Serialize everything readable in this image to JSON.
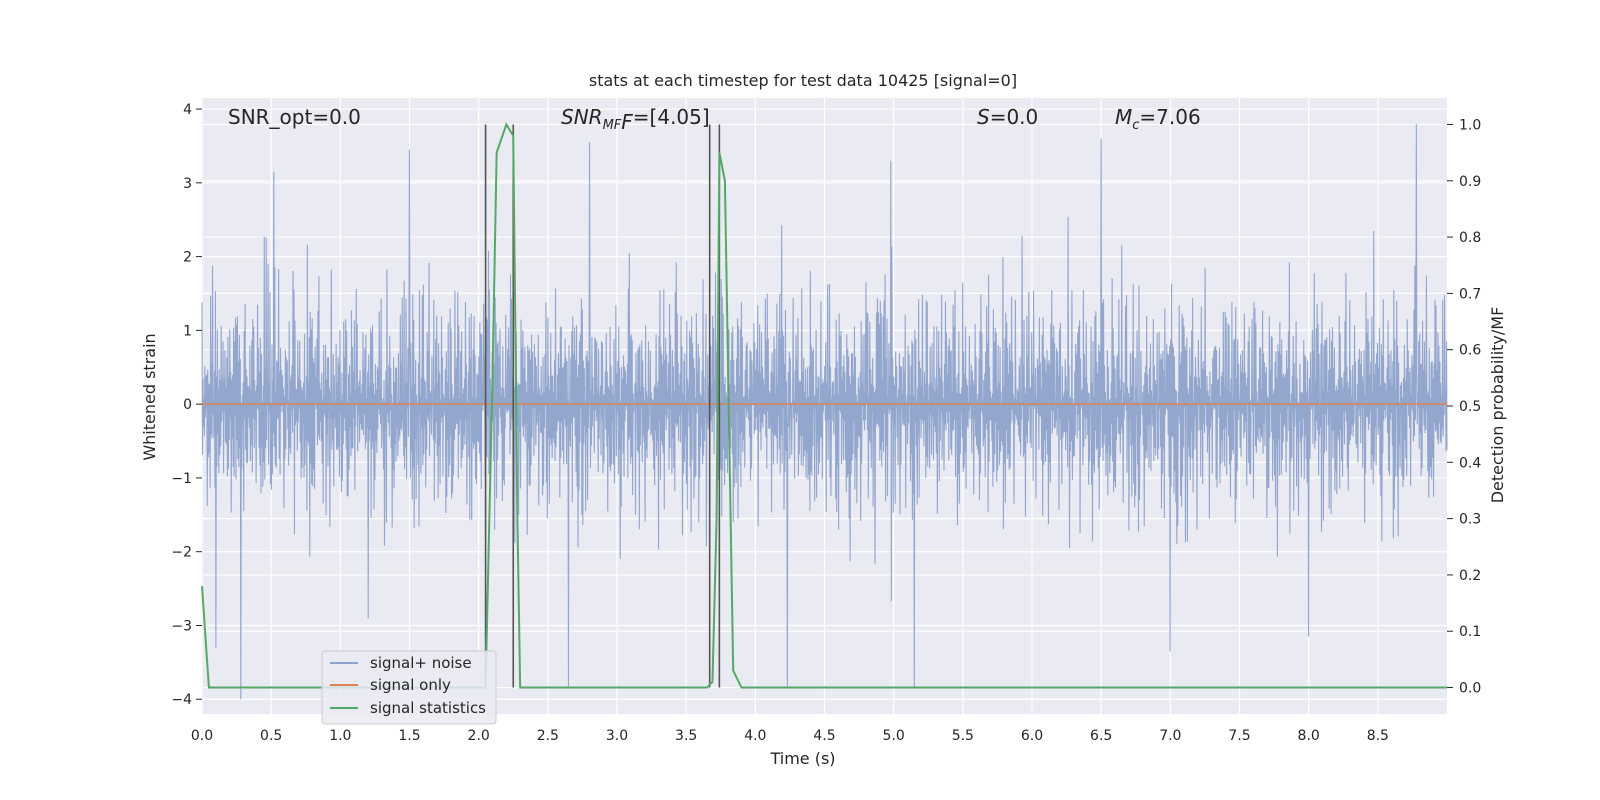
{
  "chart_data": {
    "type": "line",
    "title": "stats at each timestep for test data 10425 [signal=0]",
    "xlabel": "Time (s)",
    "ylabel_left": "Whitened strain",
    "ylabel_right": "Detection probability/MF",
    "xlim": [
      0,
      9.0
    ],
    "ylim_left": [
      -4.2,
      4.15
    ],
    "ylim_right": [
      -0.047,
      1.047
    ],
    "grid": true,
    "legend_position": "lower-left",
    "x_ticks": [
      "0.0",
      "0.5",
      "1.0",
      "1.5",
      "2.0",
      "2.5",
      "3.0",
      "3.5",
      "4.0",
      "4.5",
      "5.0",
      "5.5",
      "6.0",
      "6.5",
      "7.0",
      "7.5",
      "8.0",
      "8.5"
    ],
    "y_left_ticks": [
      "4",
      "3",
      "2",
      "1",
      "0",
      "−1",
      "−2",
      "−3",
      "−4"
    ],
    "y_right_ticks": [
      "1.0",
      "0.9",
      "0.8",
      "0.7",
      "0.6",
      "0.5",
      "0.4",
      "0.3",
      "0.2",
      "0.1",
      "0.0"
    ],
    "annotations": {
      "snr_opt": "SNR_opt=0.0",
      "snr_mf_main": "SNR",
      "snr_mf_sub": "MF",
      "snr_mf_val": "=[4.05]",
      "s_main": "S",
      "s_val": "=0.0",
      "mc_main": "M",
      "mc_sub": "c",
      "mc_val": "=7.06"
    },
    "vertical_lines_x": [
      2.05,
      2.25,
      3.67,
      3.74
    ],
    "series": [
      {
        "name": "signal+ noise",
        "color": "#8da2cb",
        "axis": "left",
        "x_range": [
          0.0,
          9.0
        ],
        "envelope": {
          "typical_abs": 1.7,
          "max_abs": 3.9
        },
        "peaks": [
          {
            "x": 0.1,
            "y": -3.3
          },
          {
            "x": 0.28,
            "y": -4.0
          },
          {
            "x": 0.52,
            "y": 3.15
          },
          {
            "x": 1.5,
            "y": 3.45
          },
          {
            "x": 1.2,
            "y": -2.9
          },
          {
            "x": 2.65,
            "y": -3.85
          },
          {
            "x": 2.8,
            "y": 3.55
          },
          {
            "x": 4.23,
            "y": -3.85
          },
          {
            "x": 4.98,
            "y": 3.3
          },
          {
            "x": 5.15,
            "y": -3.85
          },
          {
            "x": 6.5,
            "y": 3.6
          },
          {
            "x": 7.0,
            "y": -3.35
          },
          {
            "x": 8.0,
            "y": -3.15
          },
          {
            "x": 8.78,
            "y": 3.8
          }
        ]
      },
      {
        "name": "signal only",
        "color": "#dd8452",
        "axis": "left",
        "x": [
          0.0,
          9.0
        ],
        "y": [
          0.0,
          0.0
        ]
      },
      {
        "name": "signal statistics",
        "color": "#55a868",
        "axis": "right",
        "x": [
          0.0,
          0.05,
          0.1,
          2.05,
          2.1,
          2.13,
          2.2,
          2.25,
          2.28,
          2.3,
          2.35,
          3.65,
          3.69,
          3.72,
          3.74,
          3.78,
          3.84,
          3.9,
          4.0,
          9.0
        ],
        "y": [
          0.18,
          0.0,
          0.0,
          0.0,
          0.55,
          0.95,
          1.0,
          0.98,
          0.3,
          0.0,
          0.0,
          0.0,
          0.01,
          0.3,
          0.95,
          0.9,
          0.03,
          0.0,
          0.0,
          0.0
        ]
      }
    ]
  }
}
